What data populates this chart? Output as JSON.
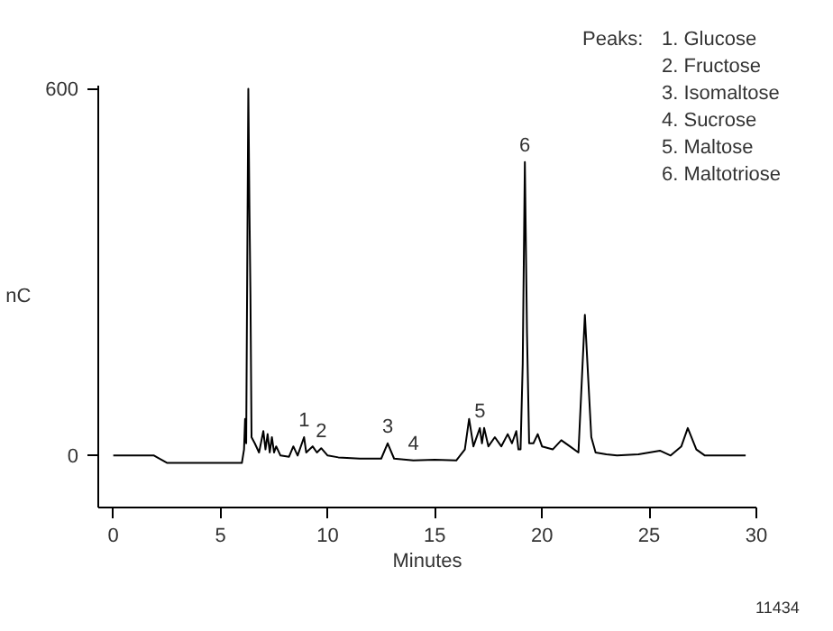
{
  "chart_data": {
    "type": "line",
    "xlabel": "Minutes",
    "ylabel": "nC",
    "x": [
      0,
      1.9,
      2.5,
      6.0,
      6.1,
      6.15,
      6.2,
      6.3,
      6.35,
      6.4,
      6.45,
      6.6,
      6.8,
      7.0,
      7.1,
      7.2,
      7.3,
      7.4,
      7.5,
      7.6,
      7.8,
      8.2,
      8.4,
      8.6,
      8.9,
      9.0,
      9.3,
      9.5,
      9.7,
      10,
      10.5,
      11.5,
      12.5,
      12.8,
      13.1,
      14,
      15,
      16,
      16.4,
      16.6,
      16.8,
      17.1,
      17.2,
      17.3,
      17.5,
      17.8,
      18.1,
      18.4,
      18.6,
      18.8,
      18.9,
      19.0,
      19.1,
      19.2,
      19.3,
      19.4,
      19.6,
      19.8,
      20,
      20.5,
      20.9,
      21.3,
      21.7,
      22.0,
      22.3,
      22.5,
      23,
      23.5,
      24.5,
      25.5,
      26,
      26.5,
      26.8,
      27.2,
      27.6,
      29.5
    ],
    "series": [
      {
        "color": "#000000",
        "values": [
          0,
          0,
          -12,
          -12,
          10,
          60,
          20,
          600,
          410,
          260,
          30,
          20,
          5,
          40,
          10,
          35,
          5,
          30,
          5,
          15,
          0,
          -2,
          15,
          0,
          30,
          5,
          15,
          5,
          12,
          0,
          -3,
          -5,
          -5,
          20,
          -5,
          -8,
          -7,
          -8,
          10,
          60,
          15,
          45,
          20,
          45,
          15,
          30,
          15,
          35,
          20,
          40,
          10,
          10,
          150,
          480,
          200,
          20,
          20,
          35,
          15,
          10,
          25,
          15,
          5,
          230,
          30,
          5,
          2,
          0,
          2,
          8,
          0,
          15,
          45,
          10,
          0,
          0
        ]
      }
    ],
    "xlim": [
      -0.7,
      30
    ],
    "ylim": [
      -85,
      605
    ],
    "xticks": [
      0,
      5,
      10,
      15,
      20,
      25,
      30
    ],
    "yticks": [
      0,
      600
    ],
    "grid": false,
    "marker": "none",
    "line_style": "solid",
    "annotations": [
      {
        "text": "1",
        "x": 8.9,
        "y": 30
      },
      {
        "text": "2",
        "x": 9.7,
        "y": 12
      },
      {
        "text": "3",
        "x": 12.8,
        "y": 20
      },
      {
        "text": "4",
        "x": 14,
        "y": -8
      },
      {
        "text": "5",
        "x": 17.1,
        "y": 45
      },
      {
        "text": "6",
        "x": 19.2,
        "y": 480
      },
      "Peaks:",
      "1.  Glucose",
      "2.  Fructose",
      "3.  Isomaltose",
      "4.  Sucrose",
      "5.  Maltose",
      "6.  Maltotriose",
      "11434"
    ]
  }
}
